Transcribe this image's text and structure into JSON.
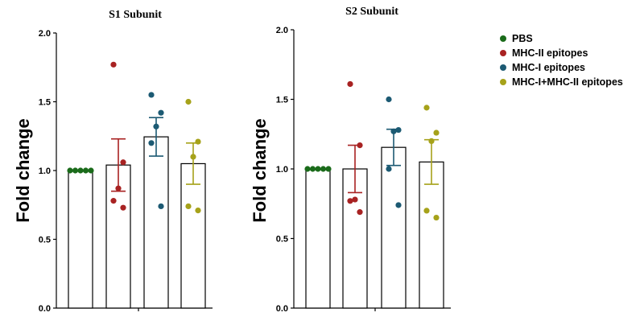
{
  "chart_data": [
    {
      "type": "bar",
      "title": "S1 Subunit",
      "ylabel": "Fold change",
      "ylim": [
        0,
        2.0
      ],
      "yticks": [
        "0.0",
        "0.5",
        "1.0",
        "1.5",
        "2.0"
      ],
      "grid": false,
      "series": [
        {
          "name": "PBS",
          "mean": 1.0,
          "sem": 0.0,
          "points": [
            1.0,
            1.0,
            1.0,
            1.0,
            1.0
          ]
        },
        {
          "name": "MHC-II epitopes",
          "mean": 1.04,
          "sem": 0.19,
          "points": [
            1.77,
            1.06,
            0.87,
            0.78,
            0.73
          ]
        },
        {
          "name": "MHC-I epitopes",
          "mean": 1.245,
          "sem": 0.14,
          "points": [
            1.55,
            1.42,
            1.32,
            1.2,
            0.74
          ]
        },
        {
          "name": "MHC-I+MHC-II epitopes",
          "mean": 1.05,
          "sem": 0.15,
          "points": [
            1.5,
            1.21,
            1.1,
            0.74,
            0.71
          ]
        }
      ]
    },
    {
      "type": "bar",
      "title": "S2 Subunit",
      "ylabel": "Fold change",
      "ylim": [
        0,
        2.0
      ],
      "yticks": [
        "0.0",
        "0.5",
        "1.0",
        "1.5",
        "2.0"
      ],
      "grid": false,
      "series": [
        {
          "name": "PBS",
          "mean": 1.0,
          "sem": 0.0,
          "points": [
            1.0,
            1.0,
            1.0,
            1.0,
            1.0
          ]
        },
        {
          "name": "MHC-II epitopes",
          "mean": 1.0,
          "sem": 0.17,
          "points": [
            1.61,
            1.17,
            0.78,
            0.77,
            0.69
          ]
        },
        {
          "name": "MHC-I epitopes",
          "mean": 1.155,
          "sem": 0.13,
          "points": [
            1.5,
            1.28,
            1.27,
            1.0,
            0.74
          ]
        },
        {
          "name": "MHC-I+MHC-II epitopes",
          "mean": 1.05,
          "sem": 0.16,
          "points": [
            1.44,
            1.26,
            1.2,
            0.7,
            0.65
          ]
        }
      ]
    }
  ],
  "legend": {
    "placement": "top-right",
    "items": [
      {
        "label": "PBS",
        "color": "#1a6b1a"
      },
      {
        "label": "MHC-II epitopes",
        "color": "#a82222"
      },
      {
        "label": "MHC-I epitopes",
        "color": "#1c5a73"
      },
      {
        "label": "MHC-I+MHC-II epitopes",
        "color": "#a6a21a"
      }
    ]
  }
}
